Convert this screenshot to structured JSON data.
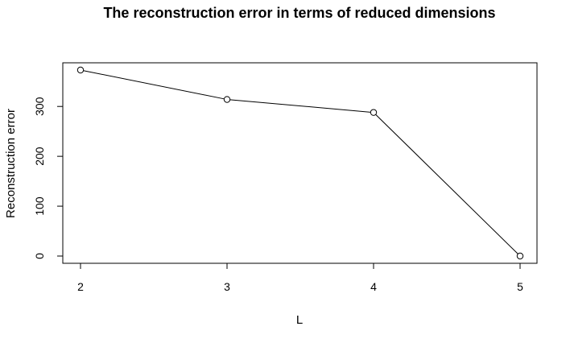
{
  "chart_data": {
    "type": "line",
    "title": "The reconstruction error in terms of reduced dimensions",
    "xlabel": "L",
    "ylabel": "Reconstruction error",
    "x": [
      2,
      3,
      4,
      5
    ],
    "y": [
      373,
      314,
      288,
      0
    ],
    "xlim": [
      2,
      5
    ],
    "ylim": [
      0,
      373
    ],
    "xticks": [
      2,
      3,
      4,
      5
    ],
    "yticks": [
      0,
      100,
      200,
      300
    ],
    "marker": "open-circle",
    "grid": false,
    "legend": "none",
    "color": "#000000"
  }
}
